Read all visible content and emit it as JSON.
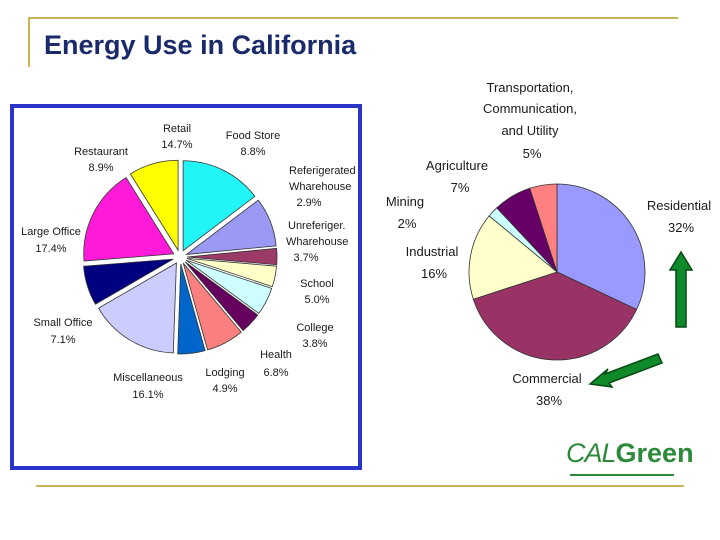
{
  "slide": {
    "title": "Energy Use in California"
  },
  "logo": {
    "part1": "CAL",
    "part2": "Green"
  },
  "chart_data": [
    {
      "type": "pie",
      "title": "",
      "slices": [
        {
          "name": "Retail",
          "value": 14.7,
          "label": "14.7%",
          "color": "#22f5f5"
        },
        {
          "name": "Food Store",
          "value": 8.8,
          "label": "8.8%",
          "color": "#9a9af5"
        },
        {
          "name": "Referigerated Wharehouse",
          "value": 2.9,
          "label": "2.9%",
          "color": "#9b3a66"
        },
        {
          "name": "Unreferiger. Wharehouse",
          "value": 3.7,
          "label": "3.7%",
          "color": "#ffffc8"
        },
        {
          "name": "School",
          "value": 5.0,
          "label": "5.0%",
          "color": "#cdfdfd"
        },
        {
          "name": "College",
          "value": 3.8,
          "label": "3.8%",
          "color": "#66005f"
        },
        {
          "name": "Health",
          "value": 6.8,
          "label": "6.8%",
          "color": "#fa8080"
        },
        {
          "name": "Lodging",
          "value": 4.9,
          "label": "4.9%",
          "color": "#0066cc"
        },
        {
          "name": "Miscellaneous",
          "value": 16.1,
          "label": "16.1%",
          "color": "#ccccff"
        },
        {
          "name": "Small Office",
          "value": 7.1,
          "label": "7.1%",
          "color": "#000080"
        },
        {
          "name": "Large Office",
          "value": 17.4,
          "label": "17.4%",
          "color": "#ff1ad9"
        },
        {
          "name": "Restaurant",
          "value": 8.9,
          "label": "8.9%",
          "color": "#ffff00"
        }
      ]
    },
    {
      "type": "pie",
      "title": "",
      "slices": [
        {
          "name": "Residential",
          "value": 32,
          "label": "32%",
          "color": "#9999ff"
        },
        {
          "name": "Commercial",
          "value": 38,
          "label": "38%",
          "color": "#993366"
        },
        {
          "name": "Industrial",
          "value": 16,
          "label": "16%",
          "color": "#ffffcc"
        },
        {
          "name": "Mining",
          "value": 2,
          "label": "2%",
          "color": "#ccffff"
        },
        {
          "name": "Agriculture",
          "value": 7,
          "label": "7%",
          "color": "#660066"
        },
        {
          "name": "Transportation, Communication, and Utility",
          "value": 5,
          "label": "5%",
          "color": "#ff8080"
        }
      ]
    }
  ]
}
